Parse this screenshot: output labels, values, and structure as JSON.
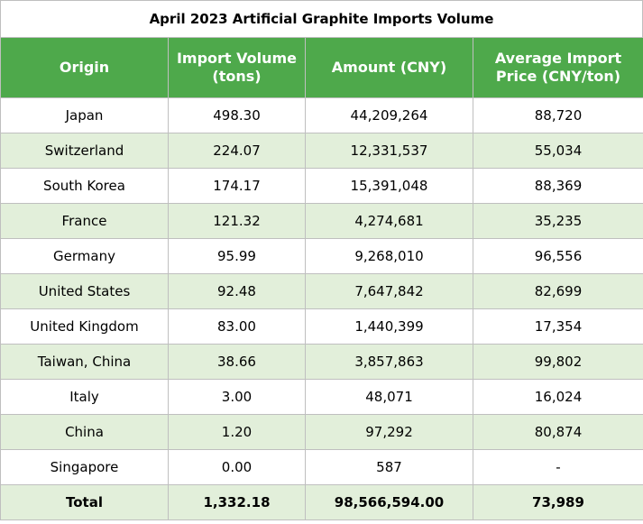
{
  "title": "April 2023 Artificial Graphite Imports Volume",
  "columns": [
    {
      "line1": "Origin",
      "line2": ""
    },
    {
      "line1": "Import Volume",
      "line2": "(tons)"
    },
    {
      "line1": "Amount (CNY)",
      "line2": ""
    },
    {
      "line1": "Average Import",
      "line2": "Price (CNY/ton)"
    }
  ],
  "rows": [
    [
      "Japan",
      "498.30",
      "44,209,264",
      "88,720"
    ],
    [
      "Switzerland",
      "224.07",
      "12,331,537",
      "55,034"
    ],
    [
      "South Korea",
      "174.17",
      "15,391,048",
      "88,369"
    ],
    [
      "France",
      "121.32",
      "4,274,681",
      "35,235"
    ],
    [
      "Germany",
      "95.99",
      "9,268,010",
      "96,556"
    ],
    [
      "United States",
      "92.48",
      "7,647,842",
      "82,699"
    ],
    [
      "United Kingdom",
      "83.00",
      "1,440,399",
      "17,354"
    ],
    [
      "Taiwan, China",
      "38.66",
      "3,857,863",
      "99,802"
    ],
    [
      "Italy",
      "3.00",
      "48,071",
      "16,024"
    ],
    [
      "China",
      "1.20",
      "97,292",
      "80,874"
    ],
    [
      "Singapore",
      "0.00",
      "587",
      "-"
    ]
  ],
  "total": [
    "Total",
    "1,332.18",
    "98,566,594.00",
    "73,989"
  ],
  "colors": {
    "header_bg": "#4ea94b",
    "alt_row_bg": "#e2efda",
    "border": "#bfbfbf"
  }
}
